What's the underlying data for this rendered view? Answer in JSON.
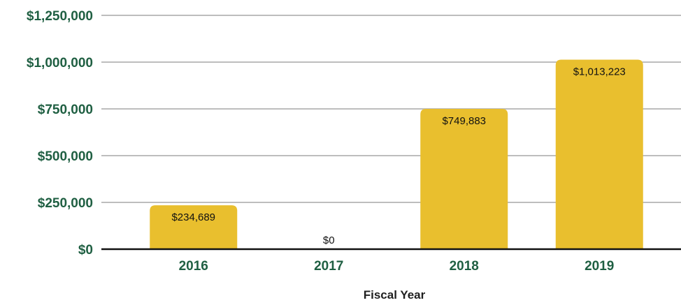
{
  "chart_data": {
    "type": "bar",
    "title": "",
    "xlabel": "Fiscal Year",
    "ylabel": "",
    "categories": [
      "2016",
      "2017",
      "2018",
      "2019"
    ],
    "values": [
      234689,
      0,
      749883,
      1013223
    ],
    "data_labels": [
      "$234,689",
      "$0",
      "$749,883",
      "$1,013,223"
    ],
    "ylim": [
      0,
      1250000
    ],
    "y_ticks": [
      {
        "value": 0,
        "label": "$0"
      },
      {
        "value": 250000,
        "label": "$250,000"
      },
      {
        "value": 500000,
        "label": "$500,000"
      },
      {
        "value": 750000,
        "label": "$750,000"
      },
      {
        "value": 1000000,
        "label": "$1,000,000"
      },
      {
        "value": 1250000,
        "label": "$1,250,000"
      }
    ],
    "grid": true,
    "legend": "none",
    "colors": {
      "bar": "#E9BF2E",
      "axis_text": "#1F5F42",
      "grid": "#BDBDBD",
      "baseline": "#111111",
      "data_label": "#111111"
    }
  }
}
